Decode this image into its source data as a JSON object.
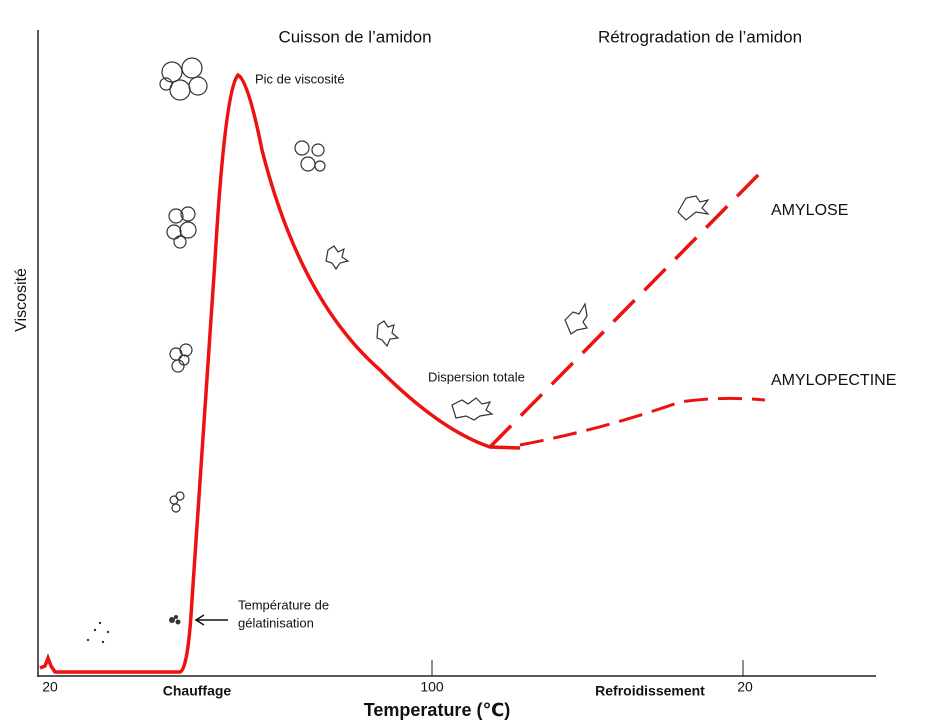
{
  "header": {
    "left": "Cuisson de l’amidon",
    "right": "Rétrogradation de l’amidon"
  },
  "axes": {
    "y_label": "Viscosité",
    "x_label": "Temperature (℃)",
    "x_ticks": [
      "20",
      "Chauffage",
      "100",
      "Refroidissement",
      "20"
    ]
  },
  "annotations": {
    "peak": "Pic de viscosité",
    "dispersion": "Dispersion totale",
    "gelatinisation": [
      "Température de",
      "gélatinisation"
    ]
  },
  "curves": {
    "amylose": "AMYLOSE",
    "amylopectine": "AMYLOPECTINE"
  }
}
